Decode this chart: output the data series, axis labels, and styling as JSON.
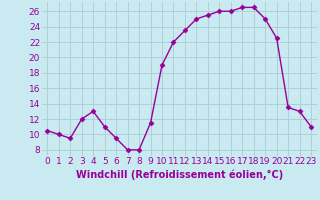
{
  "x": [
    0,
    1,
    2,
    3,
    4,
    5,
    6,
    7,
    8,
    9,
    10,
    11,
    12,
    13,
    14,
    15,
    16,
    17,
    18,
    19,
    20,
    21,
    22,
    23
  ],
  "y": [
    10.5,
    10.0,
    9.5,
    12.0,
    13.0,
    11.0,
    9.5,
    8.0,
    8.0,
    11.5,
    19.0,
    22.0,
    23.5,
    25.0,
    25.5,
    26.0,
    26.0,
    26.5,
    26.5,
    25.0,
    22.5,
    13.5,
    13.0,
    11.0
  ],
  "line_color": "#990099",
  "marker": "D",
  "marker_size": 2.5,
  "bg_color": "#c8eaf0",
  "grid_color": "#b0d0d8",
  "xlabel": "Windchill (Refroidissement éolien,°C)",
  "ytick_vals": [
    8,
    10,
    12,
    14,
    16,
    18,
    20,
    22,
    24,
    26
  ],
  "xlim": [
    -0.5,
    23.5
  ],
  "ylim": [
    7.2,
    27.2
  ],
  "xlabel_fontsize": 7.0,
  "tick_fontsize": 6.5,
  "line_width": 1.0,
  "label_color": "#990099"
}
